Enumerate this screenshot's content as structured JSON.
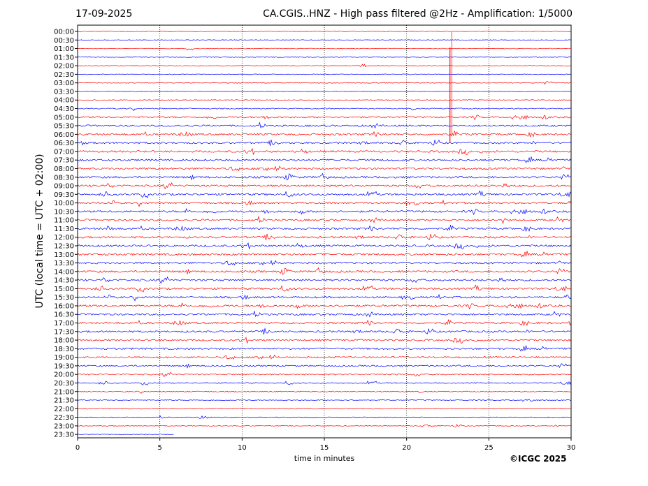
{
  "header": {
    "date": "17-09-2025",
    "title": "CA.CGIS..HNZ - High pass filtered @2Hz - Amplification: 1/5000"
  },
  "footer": {
    "xlabel": "time in minutes",
    "credit": "©ICGC 2025"
  },
  "chart_data": {
    "type": "line",
    "title": "CA.CGIS..HNZ - High pass filtered @2Hz - Amplification: 1/5000",
    "xlabel": "time in minutes",
    "ylabel": "UTC (local time = UTC + 02:00)",
    "xlim": [
      0,
      30
    ],
    "x_ticks": [
      0,
      5,
      10,
      15,
      20,
      25,
      30
    ],
    "grid": "vertical dotted lines at 5-minute ticks",
    "row_labels": [
      "00:00",
      "00:30",
      "01:00",
      "01:30",
      "02:00",
      "02:30",
      "03:00",
      "03:30",
      "04:00",
      "04:30",
      "05:00",
      "05:30",
      "06:00",
      "06:30",
      "07:00",
      "07:30",
      "08:00",
      "08:30",
      "09:00",
      "09:30",
      "10:00",
      "10:30",
      "11:00",
      "11:30",
      "12:00",
      "12:30",
      "13:00",
      "13:30",
      "14:00",
      "14:30",
      "15:00",
      "15:30",
      "16:00",
      "16:30",
      "17:00",
      "17:30",
      "18:00",
      "18:30",
      "19:00",
      "19:30",
      "20:00",
      "20:30",
      "21:00",
      "21:30",
      "22:00",
      "22:30",
      "23:00",
      "23:30"
    ],
    "row_colors": [
      "#ff0000",
      "#0000ff"
    ],
    "trace_activity": [
      0.05,
      0.05,
      0.05,
      0.05,
      0.05,
      0.05,
      0.06,
      0.04,
      0.08,
      0.2,
      0.45,
      0.5,
      0.55,
      0.55,
      0.6,
      0.6,
      0.6,
      0.6,
      0.6,
      0.6,
      0.6,
      0.6,
      0.6,
      0.6,
      0.6,
      0.6,
      0.6,
      0.6,
      0.6,
      0.6,
      0.6,
      0.6,
      0.6,
      0.55,
      0.55,
      0.55,
      0.55,
      0.55,
      0.5,
      0.4,
      0.3,
      0.2,
      0.15,
      0.12,
      0.1,
      0.08,
      0.06,
      0.05
    ],
    "last_trace_end_minute": 5.9,
    "spike": {
      "minute": 22.7,
      "start_row": "01:30",
      "end_row": "06:30"
    }
  }
}
